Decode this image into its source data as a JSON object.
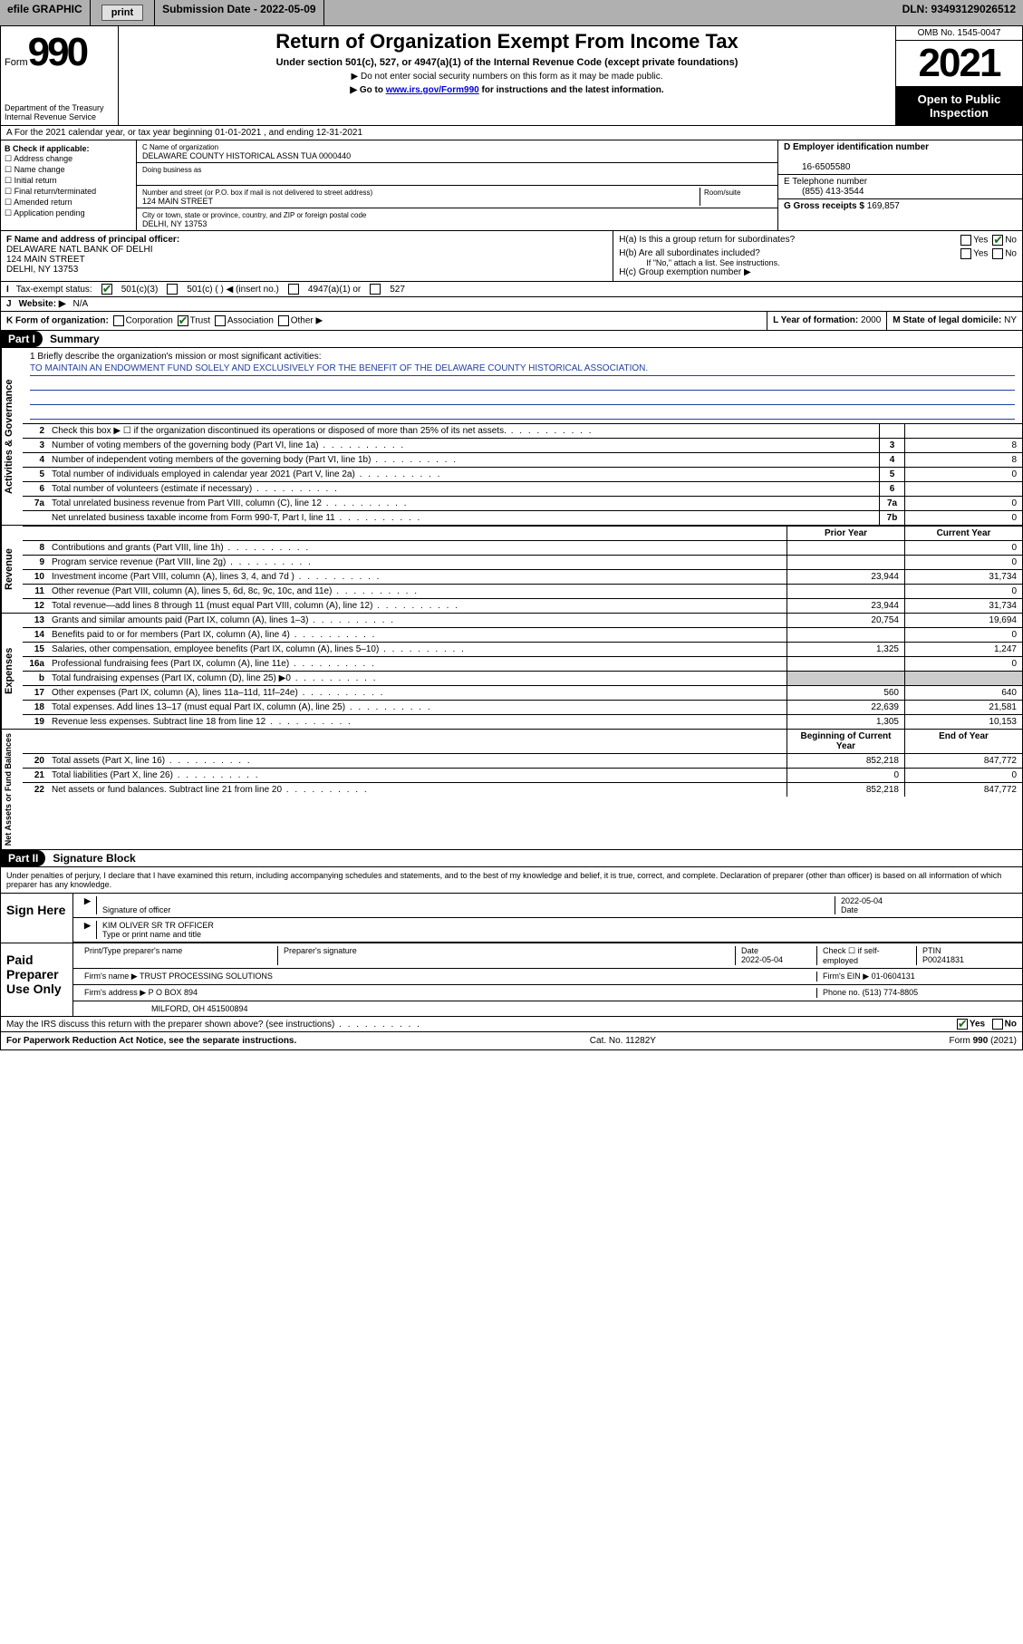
{
  "efile": {
    "label": "efile GRAPHIC",
    "print_btn": "print",
    "sub_label": "Submission Date - 2022-05-09",
    "dln_label": "DLN: 93493129026512"
  },
  "header": {
    "form_word": "Form",
    "form_number": "990",
    "dept": "Department of the Treasury",
    "irs": "Internal Revenue Service",
    "title": "Return of Organization Exempt From Income Tax",
    "subtitle": "Under section 501(c), 527, or 4947(a)(1) of the Internal Revenue Code (except private foundations)",
    "note1": "▶ Do not enter social security numbers on this form as it may be made public.",
    "note2_pre": "▶ Go to ",
    "note2_link": "www.irs.gov/Form990",
    "note2_post": " for instructions and the latest information.",
    "omb": "OMB No. 1545-0047",
    "year": "2021",
    "pub": "Open to Public Inspection"
  },
  "rowA": "A For the 2021 calendar year, or tax year beginning 01-01-2021   , and ending 12-31-2021",
  "checkB": {
    "label": "B Check if applicable:",
    "items": [
      "Address change",
      "Name change",
      "Initial return",
      "Final return/terminated",
      "Amended return",
      "Application pending"
    ]
  },
  "org": {
    "name_label": "C Name of organization",
    "name": "DELAWARE COUNTY HISTORICAL ASSN TUA 0000440",
    "dba_label": "Doing business as",
    "addr_label": "Number and street (or P.O. box if mail is not delivered to street address)",
    "room_label": "Room/suite",
    "addr": "124 MAIN STREET",
    "city_label": "City or town, state or province, country, and ZIP or foreign postal code",
    "city": "DELHI, NY  13753"
  },
  "ein": {
    "label": "D Employer identification number",
    "value": "16-6505580"
  },
  "phone": {
    "label": "E Telephone number",
    "value": "(855) 413-3544"
  },
  "gross": {
    "label": "G Gross receipts $",
    "value": "169,857"
  },
  "officerF": {
    "label": "F  Name and address of principal officer:",
    "name": "DELAWARE NATL BANK OF DELHI",
    "addr1": "124 MAIN STREET",
    "addr2": "DELHI, NY  13753"
  },
  "groupH": {
    "ha": "H(a)  Is this a group return for subordinates?",
    "hb": "H(b)  Are all subordinates included?",
    "hb_note": "If \"No,\" attach a list. See instructions.",
    "hc": "H(c)  Group exemption number ▶",
    "yes": "Yes",
    "no": "No"
  },
  "taxI": {
    "label": "Tax-exempt status:",
    "o1": "501(c)(3)",
    "o2": "501(c) (  ) ◀ (insert no.)",
    "o3": "4947(a)(1) or",
    "o4": "527"
  },
  "site": {
    "label": "Website: ▶",
    "value": "N/A"
  },
  "rowK": {
    "label": "K Form of organization:",
    "opts": [
      "Corporation",
      "Trust",
      "Association",
      "Other ▶"
    ],
    "checked": 1,
    "year_label": "L Year of formation:",
    "year": "2000",
    "state_label": "M State of legal domicile:",
    "state": "NY"
  },
  "part1": {
    "tag": "Part I",
    "title": "Summary"
  },
  "mission": {
    "q": "1  Briefly describe the organization's mission or most significant activities:",
    "text": "TO MAINTAIN AN ENDOWMENT FUND SOLELY AND EXCLUSIVELY FOR THE BENEFIT OF THE DELAWARE COUNTY HISTORICAL ASSOCIATION."
  },
  "vtabs": {
    "gov": "Activities & Governance",
    "rev": "Revenue",
    "exp": "Expenses",
    "net": "Net Assets or Fund Balances"
  },
  "gov_rows": [
    {
      "n": "2",
      "d": "Check this box ▶ ☐  if the organization discontinued its operations or disposed of more than 25% of its net assets.",
      "c": "",
      "v": ""
    },
    {
      "n": "3",
      "d": "Number of voting members of the governing body (Part VI, line 1a)",
      "c": "3",
      "v": "8"
    },
    {
      "n": "4",
      "d": "Number of independent voting members of the governing body (Part VI, line 1b)",
      "c": "4",
      "v": "8"
    },
    {
      "n": "5",
      "d": "Total number of individuals employed in calendar year 2021 (Part V, line 2a)",
      "c": "5",
      "v": "0"
    },
    {
      "n": "6",
      "d": "Total number of volunteers (estimate if necessary)",
      "c": "6",
      "v": ""
    },
    {
      "n": "7a",
      "d": "Total unrelated business revenue from Part VIII, column (C), line 12",
      "c": "7a",
      "v": "0"
    },
    {
      "n": "",
      "d": "Net unrelated business taxable income from Form 990-T, Part I, line 11",
      "c": "7b",
      "v": "0"
    }
  ],
  "two_col_head": {
    "prior": "Prior Year",
    "curr": "Current Year"
  },
  "rev_rows": [
    {
      "n": "8",
      "d": "Contributions and grants (Part VIII, line 1h)",
      "p": "",
      "c": "0"
    },
    {
      "n": "9",
      "d": "Program service revenue (Part VIII, line 2g)",
      "p": "",
      "c": "0"
    },
    {
      "n": "10",
      "d": "Investment income (Part VIII, column (A), lines 3, 4, and 7d )",
      "p": "23,944",
      "c": "31,734"
    },
    {
      "n": "11",
      "d": "Other revenue (Part VIII, column (A), lines 5, 6d, 8c, 9c, 10c, and 11e)",
      "p": "",
      "c": "0"
    },
    {
      "n": "12",
      "d": "Total revenue—add lines 8 through 11 (must equal Part VIII, column (A), line 12)",
      "p": "23,944",
      "c": "31,734"
    }
  ],
  "exp_rows": [
    {
      "n": "13",
      "d": "Grants and similar amounts paid (Part IX, column (A), lines 1–3)",
      "p": "20,754",
      "c": "19,694"
    },
    {
      "n": "14",
      "d": "Benefits paid to or for members (Part IX, column (A), line 4)",
      "p": "",
      "c": "0"
    },
    {
      "n": "15",
      "d": "Salaries, other compensation, employee benefits (Part IX, column (A), lines 5–10)",
      "p": "1,325",
      "c": "1,247"
    },
    {
      "n": "16a",
      "d": "Professional fundraising fees (Part IX, column (A), line 11e)",
      "p": "",
      "c": "0"
    },
    {
      "n": "b",
      "d": "Total fundraising expenses (Part IX, column (D), line 25) ▶0",
      "p": "SHADE",
      "c": "SHADE"
    },
    {
      "n": "17",
      "d": "Other expenses (Part IX, column (A), lines 11a–11d, 11f–24e)",
      "p": "560",
      "c": "640"
    },
    {
      "n": "18",
      "d": "Total expenses. Add lines 13–17 (must equal Part IX, column (A), line 25)",
      "p": "22,639",
      "c": "21,581"
    },
    {
      "n": "19",
      "d": "Revenue less expenses. Subtract line 18 from line 12",
      "p": "1,305",
      "c": "10,153"
    }
  ],
  "net_head": {
    "b": "Beginning of Current Year",
    "e": "End of Year"
  },
  "net_rows": [
    {
      "n": "20",
      "d": "Total assets (Part X, line 16)",
      "p": "852,218",
      "c": "847,772"
    },
    {
      "n": "21",
      "d": "Total liabilities (Part X, line 26)",
      "p": "0",
      "c": "0"
    },
    {
      "n": "22",
      "d": "Net assets or fund balances. Subtract line 21 from line 20",
      "p": "852,218",
      "c": "847,772"
    }
  ],
  "part2": {
    "tag": "Part II",
    "title": "Signature Block"
  },
  "penalty": "Under penalties of perjury, I declare that I have examined this return, including accompanying schedules and statements, and to the best of my knowledge and belief, it is true, correct, and complete. Declaration of preparer (other than officer) is based on all information of which preparer has any knowledge.",
  "sign": {
    "here": "Sign Here",
    "sig_officer": "Signature of officer",
    "date_top": "2022-05-04",
    "date_lbl": "Date",
    "name": "KIM OLIVER  SR TR OFFICER",
    "name_lbl": "Type or print name and title"
  },
  "paid": {
    "title": "Paid Preparer Use Only",
    "h_name": "Print/Type preparer's name",
    "h_sig": "Preparer's signature",
    "h_date": "Date",
    "date": "2022-05-04",
    "h_check": "Check ☐ if self-employed",
    "h_ptin": "PTIN",
    "ptin": "P00241831",
    "firm_lbl": "Firm's name   ▶",
    "firm": "TRUST PROCESSING SOLUTIONS",
    "ein_lbl": "Firm's EIN ▶",
    "ein": "01-0604131",
    "addr_lbl": "Firm's address ▶",
    "addr": "P O BOX 894",
    "addr2": "MILFORD, OH  451500894",
    "phone_lbl": "Phone no.",
    "phone": "(513) 774-8805"
  },
  "discuss": {
    "q": "May the IRS discuss this return with the preparer shown above? (see instructions)",
    "yes": "Yes",
    "no": "No"
  },
  "footer": {
    "left": "For Paperwork Reduction Act Notice, see the separate instructions.",
    "mid": "Cat. No. 11282Y",
    "right": "Form 990 (2021)"
  }
}
